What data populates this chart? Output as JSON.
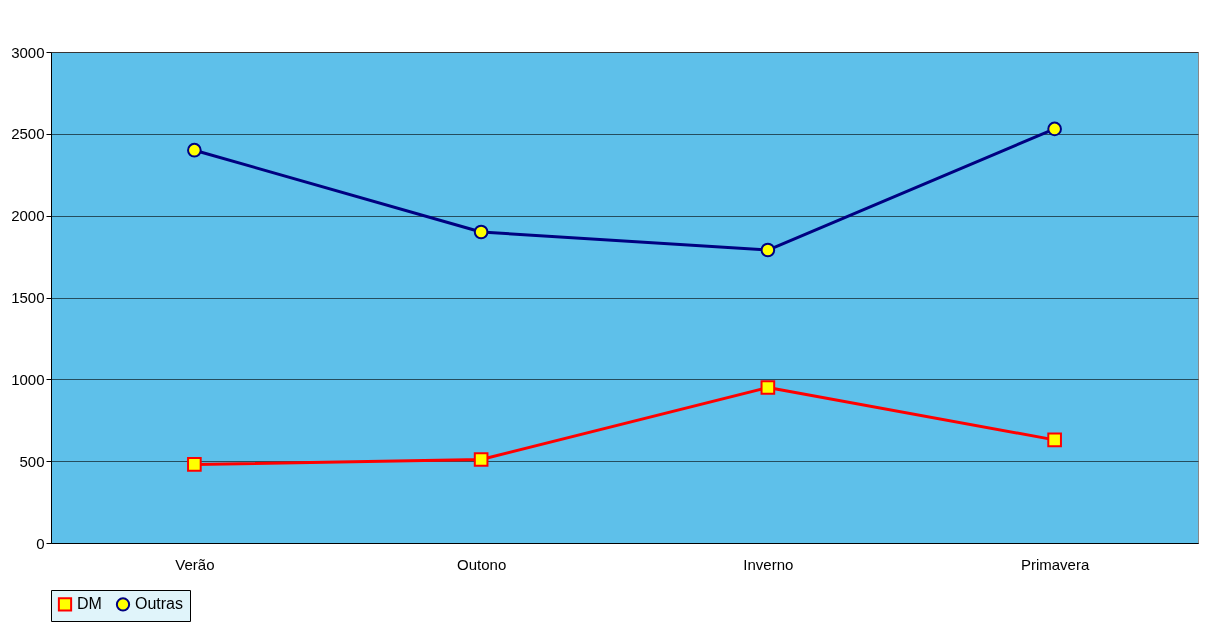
{
  "chart_data": {
    "type": "line",
    "categories": [
      "Verão",
      "Outono",
      "Inverno",
      "Primavera"
    ],
    "series": [
      {
        "name": "DM",
        "color": "#ff0000",
        "marker": "square",
        "values": [
          480,
          510,
          950,
          630
        ]
      },
      {
        "name": "Outras",
        "color": "#000080",
        "marker": "circle",
        "values": [
          2400,
          1900,
          1790,
          2530
        ]
      }
    ],
    "ylim": [
      0,
      3000
    ],
    "yticks": [
      0,
      500,
      1000,
      1500,
      2000,
      2500,
      3000
    ],
    "grid": "y",
    "legend": "bottom"
  }
}
